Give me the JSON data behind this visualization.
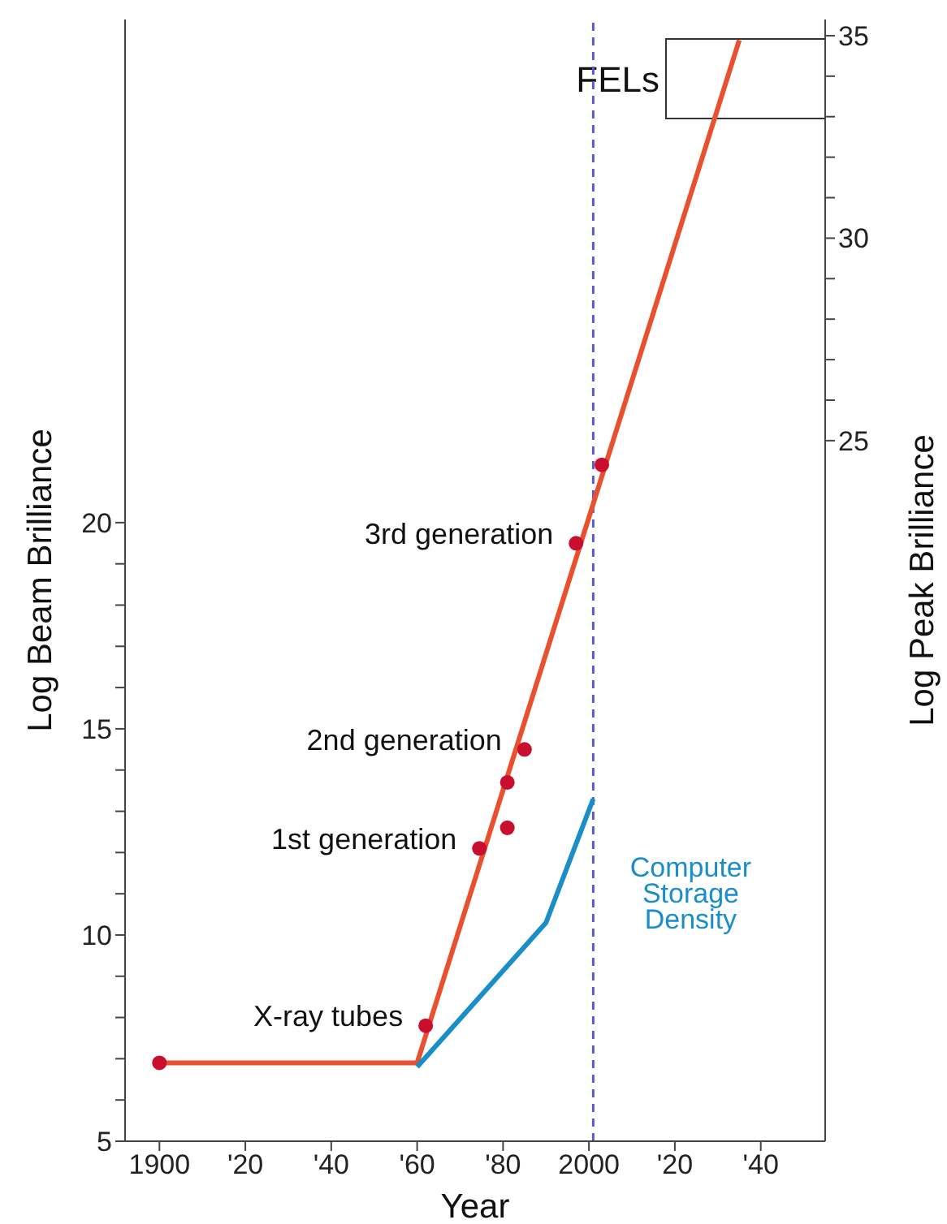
{
  "chart_data": {
    "type": "line",
    "xlabel": "Year",
    "ylabel": "Log Beam Brilliance",
    "y2label": "Log Peak Brilliance",
    "xlim": [
      1892,
      2055
    ],
    "xticks": [
      {
        "value": 1900,
        "label": "1900"
      },
      {
        "value": 1920,
        "label": "'20"
      },
      {
        "value": 1940,
        "label": "'40"
      },
      {
        "value": 1960,
        "label": "'60"
      },
      {
        "value": 1980,
        "label": "'80"
      },
      {
        "value": 2000,
        "label": "2000"
      },
      {
        "value": 2020,
        "label": "'20"
      },
      {
        "value": 2040,
        "label": "'40"
      }
    ],
    "ylim": [
      5,
      32.2
    ],
    "yticks": [
      5,
      {
        "value": 6,
        "label": null
      },
      {
        "value": 7,
        "label": null
      },
      {
        "value": 8,
        "label": null
      },
      {
        "value": 9,
        "label": null
      },
      10,
      {
        "value": 11,
        "label": null
      },
      {
        "value": 12,
        "label": null
      },
      {
        "value": 13,
        "label": null
      },
      {
        "value": 14,
        "label": null
      },
      15,
      {
        "value": 16,
        "label": null
      },
      {
        "value": 17,
        "label": null
      },
      {
        "value": 18,
        "label": null
      },
      {
        "value": 19,
        "label": null
      },
      20
    ],
    "y2lim": [
      7.7,
      35.4
    ],
    "y2ticks": [
      25,
      {
        "value": 26,
        "label": null
      },
      {
        "value": 27,
        "label": null
      },
      {
        "value": 28,
        "label": null
      },
      {
        "value": 29,
        "label": null
      },
      30,
      {
        "value": 31,
        "label": null
      },
      {
        "value": 32,
        "label": null
      },
      {
        "value": 33,
        "label": null
      },
      {
        "value": 34,
        "label": null
      },
      35
    ],
    "series": [
      {
        "color": "#e8502e",
        "x": [
          1900,
          1960,
          2035
        ],
        "values": [
          6.9,
          6.9,
          31.7
        ]
      },
      {
        "type": "line",
        "name": "Computer Storage Density",
        "color": "#1a8ec8",
        "x": [
          1960,
          1990,
          2001
        ],
        "values": [
          6.8,
          10.3,
          13.3
        ]
      },
      {
        "type": "scatter",
        "color": "#c8102e",
        "marker": "circle",
        "x": [
          1900,
          1962,
          1974.5,
          1981,
          1981,
          1985,
          1997,
          2003
        ],
        "values": [
          6.9,
          7.8,
          12.1,
          12.6,
          13.7,
          14.5,
          19.5,
          21.4
        ]
      }
    ],
    "ref_lines": [
      {
        "axis": "x",
        "value": 2001,
        "color": "#5b5bd6",
        "line_style": "dashed"
      }
    ],
    "annotations": [
      "FELs",
      {
        "text": "X-ray tubes",
        "x": 1962,
        "y": 7.8
      },
      {
        "text": "1st generation",
        "x": 1974.5,
        "y": 12.1
      },
      {
        "text": "2nd generation",
        "x": 1985,
        "y": 14.5
      },
      {
        "text": "3rd generation",
        "x": 1997,
        "y": 19.5
      }
    ],
    "legend": false
  }
}
